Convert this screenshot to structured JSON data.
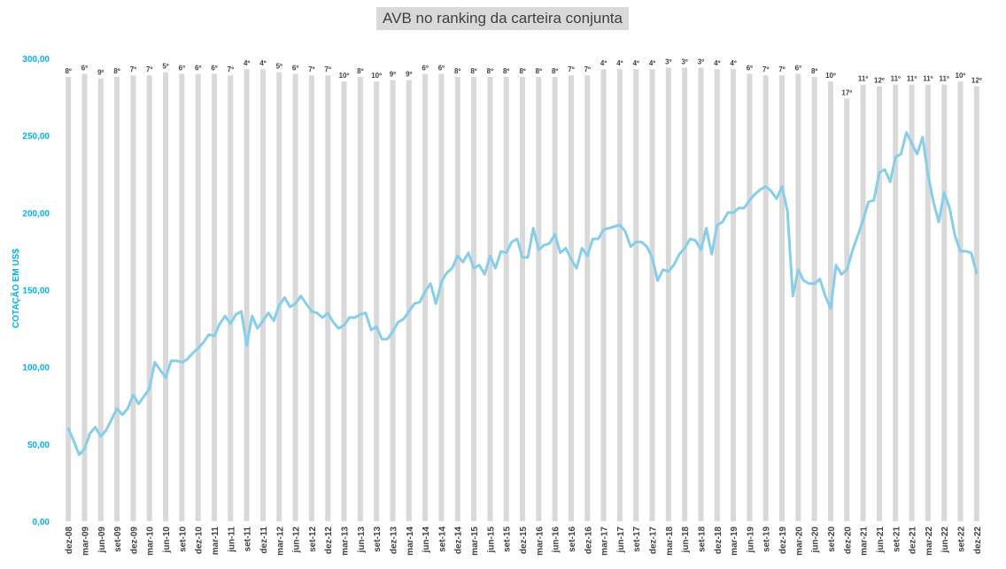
{
  "chart_data": {
    "type": "bar+line",
    "title": "AVB no ranking da carteira conjunta",
    "ylabel": "COTAÇÃO EM US$",
    "ylim": [
      0,
      300
    ],
    "yticks": [
      "0,00",
      "50,00",
      "100,00",
      "150,00",
      "200,00",
      "250,00",
      "300,00"
    ],
    "ytick_values": [
      0,
      50,
      100,
      150,
      200,
      250,
      300
    ],
    "xtick_labels": [
      "dez-08",
      "mar-09",
      "jun-09",
      "set-09",
      "dez-09",
      "mar-10",
      "jun-10",
      "set-10",
      "dez-10",
      "mar-11",
      "jun-11",
      "set-11",
      "dez-11",
      "mar-12",
      "jun-12",
      "set-12",
      "dez-12",
      "mar-13",
      "jun-13",
      "set-13",
      "dez-13",
      "mar-14",
      "jun-14",
      "set-14",
      "dez-14",
      "mar-15",
      "jun-15",
      "set-15",
      "dez-15",
      "mar-16",
      "jun-16",
      "set-16",
      "dez-16",
      "mar-17",
      "jun-17",
      "set-17",
      "dez-17",
      "mar-18",
      "jun-18",
      "set-18",
      "dez-18",
      "mar-19",
      "jun-19",
      "set-19",
      "dez-19",
      "mar-20",
      "jun-20",
      "set-20",
      "dez-20",
      "mar-21",
      "jun-21",
      "set-21",
      "dez-21",
      "mar-22",
      "jun-22",
      "set-22",
      "dez-22"
    ],
    "bar_series": {
      "name": "ranking",
      "color": "#d9d9d9",
      "labels": [
        "8º",
        "6º",
        "9º",
        "8º",
        "7º",
        "7º",
        "5º",
        "6º",
        "6º",
        "6º",
        "7º",
        "4º",
        "4º",
        "5º",
        "6º",
        "7º",
        "7º",
        "10º",
        "8º",
        "10º",
        "9º",
        "9º",
        "6º",
        "6º",
        "8º",
        "8º",
        "8º",
        "8º",
        "8º",
        "8º",
        "8º",
        "7º",
        "7º",
        "4º",
        "4º",
        "4º",
        "4º",
        "3º",
        "3º",
        "3º",
        "4º",
        "4º",
        "6º",
        "7º",
        "7º",
        "6º",
        "8º",
        "10º",
        "17º",
        "11º",
        "12º",
        "11º",
        "11º",
        "11º",
        "11º",
        "10º",
        "12º"
      ],
      "heights": [
        288,
        290,
        287,
        288,
        289,
        289,
        291,
        290,
        290,
        290,
        289,
        293,
        293,
        291,
        290,
        289,
        289,
        285,
        288,
        285,
        286,
        286,
        290,
        290,
        288,
        288,
        288,
        288,
        288,
        288,
        288,
        289,
        289,
        293,
        293,
        293,
        293,
        294,
        294,
        294,
        293,
        293,
        290,
        289,
        289,
        290,
        288,
        285,
        274,
        283,
        282,
        283,
        283,
        283,
        283,
        285,
        282
      ]
    },
    "line_series": {
      "name": "cotação",
      "color": "#87ceeb",
      "values": [
        60,
        52,
        43,
        47,
        57,
        61,
        55,
        59,
        66,
        73,
        69,
        73,
        82,
        76,
        81,
        86,
        103,
        98,
        93,
        104,
        104,
        103,
        105,
        109,
        112,
        116,
        121,
        120,
        128,
        133,
        128,
        134,
        136,
        114,
        133,
        125,
        130,
        135,
        130,
        140,
        145,
        139,
        141,
        146,
        141,
        136,
        135,
        132,
        135,
        129,
        125,
        127,
        132,
        132,
        134,
        135,
        124,
        126,
        118,
        118,
        123,
        129,
        131,
        136,
        141,
        142,
        149,
        154,
        141,
        155,
        161,
        164,
        172,
        168,
        174,
        164,
        166,
        160,
        172,
        164,
        175,
        174,
        181,
        183,
        171,
        171,
        190,
        176,
        179,
        180,
        186,
        174,
        177,
        170,
        164,
        177,
        172,
        183,
        183,
        189,
        190,
        191,
        192,
        188,
        178,
        181,
        181,
        178,
        171,
        156,
        163,
        162,
        166,
        173,
        177,
        183,
        182,
        176,
        190,
        173,
        192,
        194,
        200,
        200,
        203,
        203,
        208,
        212,
        215,
        217,
        214,
        209,
        217,
        201,
        146,
        163,
        156,
        154,
        154,
        157,
        146,
        138,
        166,
        160,
        163,
        175,
        185,
        195,
        207,
        208,
        226,
        228,
        220,
        236,
        238,
        252,
        245,
        238,
        249,
        225,
        207,
        194,
        213,
        203,
        185,
        175,
        175,
        174,
        161
      ]
    }
  }
}
